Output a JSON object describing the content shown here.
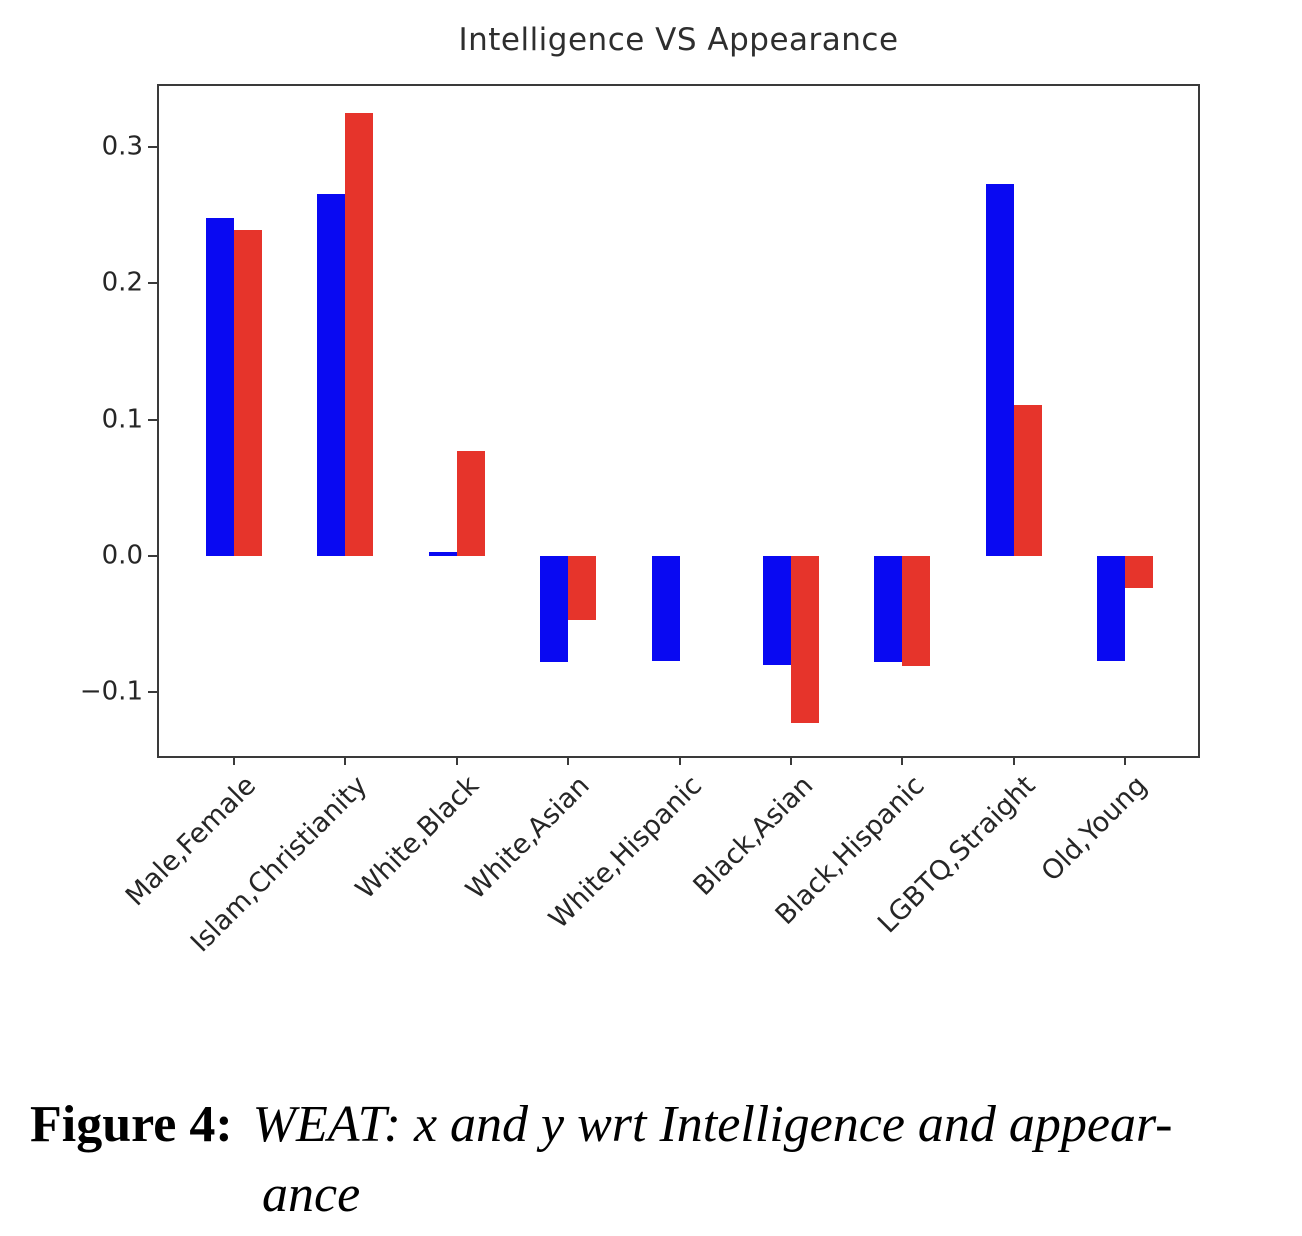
{
  "chart_data": {
    "type": "bar",
    "title": "Intelligence VS Appearance",
    "categories": [
      "Male,Female",
      "Islam,Christianity",
      "White,Black",
      "White,Asian",
      "White,Hispanic",
      "Black,Asian",
      "Black,Hispanic",
      "LGBTQ,Straight",
      "Old,Young"
    ],
    "series": [
      {
        "name": "x",
        "color": "#0909f2",
        "values": [
          0.248,
          0.266,
          0.003,
          -0.078,
          -0.077,
          -0.08,
          -0.078,
          0.273,
          -0.077
        ]
      },
      {
        "name": "y",
        "color": "#e6342b",
        "values": [
          0.239,
          0.325,
          0.077,
          -0.047,
          0.0,
          -0.123,
          -0.081,
          0.111,
          -0.024
        ]
      }
    ],
    "y_ticks": [
      {
        "value": 0.3,
        "label": "0.3"
      },
      {
        "value": 0.2,
        "label": "0.2"
      },
      {
        "value": 0.1,
        "label": "0.1"
      },
      {
        "value": 0.0,
        "label": "0.0"
      },
      {
        "value": -0.1,
        "label": "−0.1"
      }
    ],
    "ylim": [
      -0.147,
      0.345
    ],
    "xlabel": "",
    "ylabel": "",
    "grid": false,
    "legend": "none"
  },
  "figure": {
    "caption_label": "Figure 4:",
    "caption_line1": "WEAT: x and y wrt Intelligence and appear-",
    "caption_line2": "ance"
  }
}
